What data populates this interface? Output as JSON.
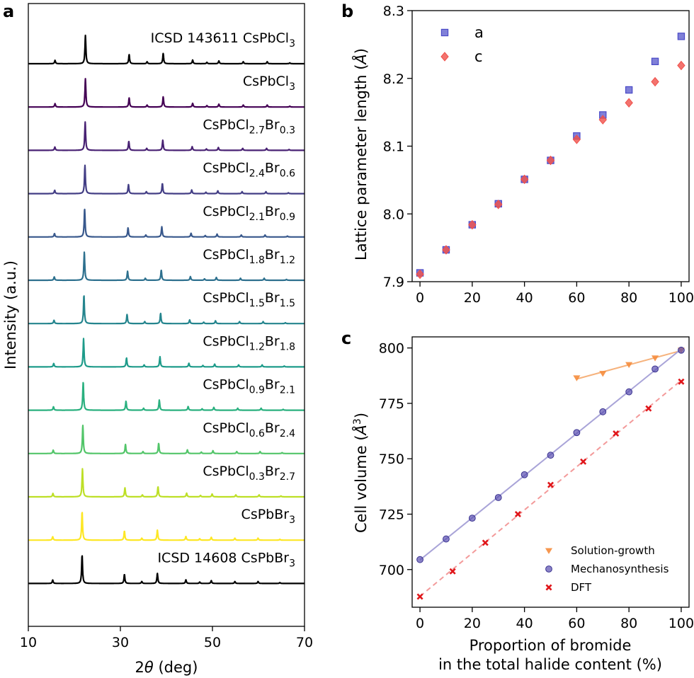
{
  "panel_labels": {
    "a": "a",
    "b": "b",
    "c": "c"
  },
  "chart_data": [
    {
      "panel": "a",
      "type": "line",
      "xlabel": "2θ (deg)",
      "ylabel": "Intensity (a.u.)",
      "xlim": [
        10,
        70
      ],
      "xticks": [
        10,
        30,
        50,
        70
      ],
      "series": [
        {
          "name": "ICSD 143611 CsPbCl",
          "sub": [
            "3"
          ],
          "parts": [
            "ICSD 143611 CsPbCl",
            "3"
          ],
          "color": "#000000",
          "shift": 0.0
        },
        {
          "name": "CsPbCl3",
          "parts": [
            "CsPbCl",
            "3"
          ],
          "color": "#440154",
          "shift": 0.0
        },
        {
          "name": "CsPbCl2.7Br0.3",
          "parts": [
            "CsPbCl",
            "2.7",
            "Br",
            "0.3"
          ],
          "color": "#482173",
          "shift": 0.05
        },
        {
          "name": "CsPbCl2.4Br0.6",
          "parts": [
            "CsPbCl",
            "2.4",
            "Br",
            "0.6"
          ],
          "color": "#433e85",
          "shift": 0.1
        },
        {
          "name": "CsPbCl2.1Br0.9",
          "parts": [
            "CsPbCl",
            "2.1",
            "Br",
            "0.9"
          ],
          "color": "#38588c",
          "shift": 0.17
        },
        {
          "name": "CsPbCl1.8Br1.2",
          "parts": [
            "CsPbCl",
            "1.8",
            "Br",
            "1.2"
          ],
          "color": "#2d708e",
          "shift": 0.24
        },
        {
          "name": "CsPbCl1.5Br1.5",
          "parts": [
            "CsPbCl",
            "1.5",
            "Br",
            "1.5"
          ],
          "color": "#25858e",
          "shift": 0.32
        },
        {
          "name": "CsPbCl1.2Br1.8",
          "parts": [
            "CsPbCl",
            "1.2",
            "Br",
            "1.8"
          ],
          "color": "#1e9b8a",
          "shift": 0.4
        },
        {
          "name": "CsPbCl0.9Br2.1",
          "parts": [
            "CsPbCl",
            "0.9",
            "Br",
            "2.1"
          ],
          "color": "#2ab07f",
          "shift": 0.48
        },
        {
          "name": "CsPbCl0.6Br2.4",
          "parts": [
            "CsPbCl",
            "0.6",
            "Br",
            "2.4"
          ],
          "color": "#52c569",
          "shift": 0.56
        },
        {
          "name": "CsPbCl0.3Br2.7",
          "parts": [
            "CsPbCl",
            "0.3",
            "Br",
            "2.7"
          ],
          "color": "#bddf26",
          "shift": 0.64
        },
        {
          "name": "CsPbBr3",
          "parts": [
            "CsPbBr",
            "3"
          ],
          "color": "#fde725",
          "shift": 0.72
        },
        {
          "name": "ICSD 14608 CsPbBr3",
          "parts": [
            "ICSD 14608 CsPbBr",
            "3"
          ],
          "color": "#000000",
          "shift": 0.72
        }
      ]
    },
    {
      "panel": "b",
      "type": "scatter",
      "xlabel": "",
      "ylabel": "Lattice parameter length (Å)",
      "xlim": [
        -3,
        103
      ],
      "ylim": [
        7.9,
        8.3
      ],
      "xticks": [
        0,
        20,
        40,
        60,
        80,
        100
      ],
      "yticks": [
        7.9,
        8.0,
        8.1,
        8.2,
        8.3
      ],
      "legend_position": "top-left",
      "series": [
        {
          "name": "a",
          "color": "#4a4ac8",
          "marker": "square",
          "x": [
            0,
            10,
            20,
            30,
            40,
            50,
            60,
            70,
            80,
            90,
            100
          ],
          "y": [
            7.913,
            7.947,
            7.984,
            8.015,
            8.051,
            8.079,
            8.115,
            8.146,
            8.183,
            8.225,
            8.262
          ]
        },
        {
          "name": "c",
          "color": "#f0504a",
          "marker": "diamond",
          "x": [
            0,
            10,
            20,
            30,
            40,
            50,
            60,
            70,
            80,
            90,
            100
          ],
          "y": [
            7.911,
            7.947,
            7.984,
            8.014,
            8.051,
            8.079,
            8.11,
            8.139,
            8.164,
            8.195,
            8.219
          ]
        }
      ]
    },
    {
      "panel": "c",
      "type": "scatter",
      "xlabel": "Proportion of bromide",
      "xlabel2": "in the total halide content (%)",
      "ylabel": "Cell volume (Å",
      "ylabel_sup": "3",
      "ylabel_end": ")",
      "xlim": [
        -3,
        103
      ],
      "ylim": [
        683,
        805
      ],
      "xticks": [
        0,
        20,
        40,
        60,
        80,
        100
      ],
      "yticks": [
        700,
        725,
        750,
        775,
        800
      ],
      "legend_position": "bottom-right",
      "series": [
        {
          "name": "Solution-growth",
          "color": "#f58c3c",
          "marker": "triangle-down",
          "x": [
            60,
            70,
            80,
            90,
            100
          ],
          "y": [
            786.5,
            788.5,
            792.5,
            795.5,
            799
          ]
        },
        {
          "name": "Mechanosynthesis",
          "color": "#5a4fb0",
          "marker": "circle",
          "x": [
            0,
            10,
            20,
            30,
            40,
            50,
            60,
            70,
            80,
            90,
            100
          ],
          "y": [
            704.5,
            713.8,
            723.2,
            732.5,
            742.8,
            751.6,
            761.8,
            771.2,
            780.2,
            790.5,
            799
          ]
        },
        {
          "name": "DFT",
          "color": "#e0161a",
          "marker": "x",
          "x": [
            0,
            12.5,
            25,
            37.5,
            50,
            62.5,
            75,
            87.5,
            100
          ],
          "y": [
            687.8,
            699.2,
            712.1,
            725,
            738.2,
            748.7,
            761.4,
            772.7,
            784.8
          ]
        }
      ]
    }
  ]
}
